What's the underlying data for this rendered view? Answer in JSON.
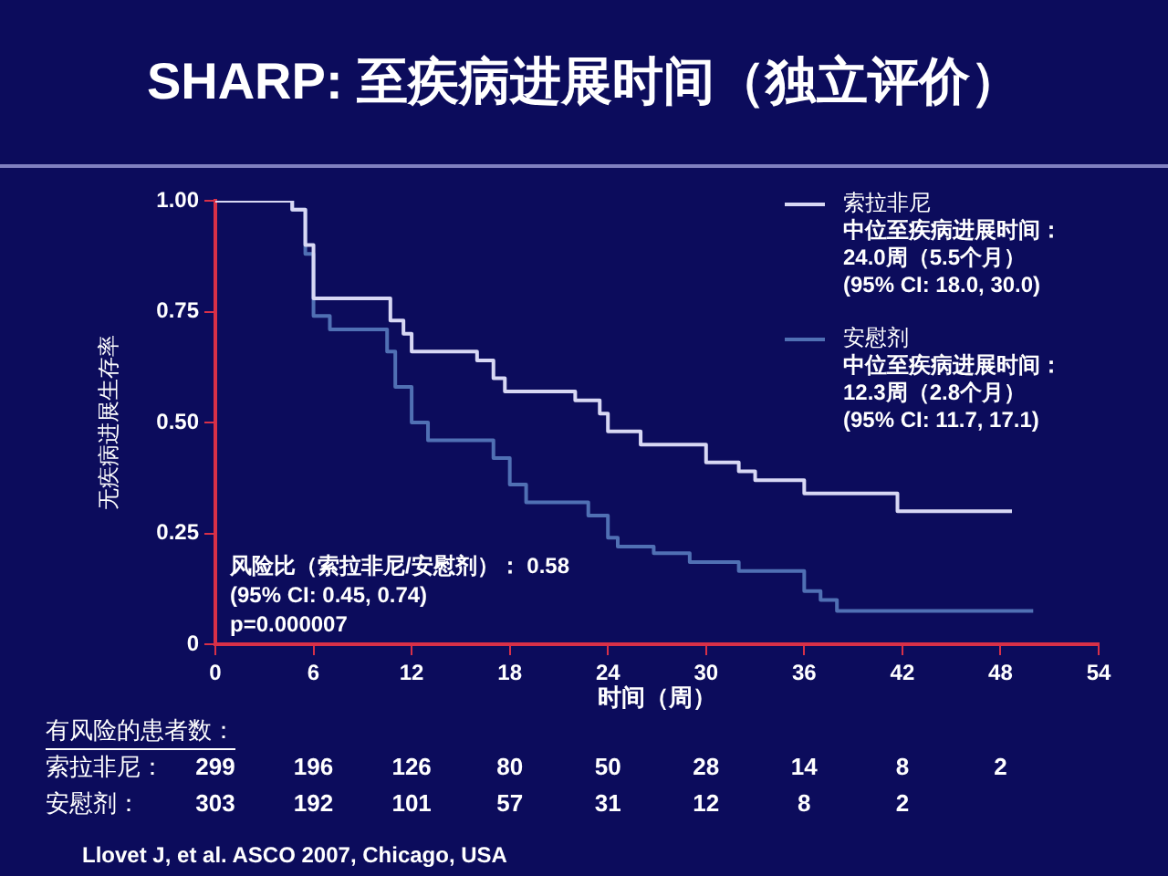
{
  "chart_data": {
    "type": "step",
    "title": "SHARP: 至疾病进展时间（独立评价）",
    "xlabel": "时间（周）",
    "ylabel": "无疾病进展生存率",
    "xlim": [
      0,
      54
    ],
    "xticks": [
      0,
      6,
      12,
      18,
      24,
      30,
      36,
      42,
      48,
      54
    ],
    "ylim": [
      0,
      1
    ],
    "yticks": [
      {
        "value": 0,
        "label": "0"
      },
      {
        "value": 0.25,
        "label": "0.25"
      },
      {
        "value": 0.5,
        "label": "0.50"
      },
      {
        "value": 0.75,
        "label": "0.75"
      },
      {
        "value": 1,
        "label": "1.00"
      }
    ],
    "legend": "top right",
    "grid": false,
    "marker": "none",
    "series": [
      {
        "name": "索拉非尼",
        "color": "#d8d8f4",
        "x": [
          0,
          4.7,
          5.5,
          6,
          10.7,
          11.5,
          12,
          16,
          17,
          17.7,
          22,
          23.5,
          24,
          26,
          30,
          32,
          33,
          36,
          41.7,
          48.7
        ],
        "values": [
          1,
          0.98,
          0.9,
          0.78,
          0.73,
          0.7,
          0.66,
          0.64,
          0.6,
          0.57,
          0.55,
          0.52,
          0.48,
          0.45,
          0.41,
          0.39,
          0.37,
          0.34,
          0.3,
          0.3
        ]
      },
      {
        "name": "安慰剂",
        "color": "#5070b4",
        "x": [
          0,
          4.7,
          5.5,
          6,
          7,
          10.5,
          11,
          12,
          13,
          17,
          18,
          19,
          22.8,
          24,
          24.6,
          26.8,
          29,
          32,
          36,
          37,
          38,
          50
        ],
        "values": [
          1,
          0.98,
          0.88,
          0.74,
          0.71,
          0.66,
          0.58,
          0.5,
          0.46,
          0.42,
          0.36,
          0.32,
          0.29,
          0.24,
          0.22,
          0.205,
          0.185,
          0.165,
          0.12,
          0.1,
          0.075,
          0.075
        ]
      }
    ],
    "annotations": [
      "中位至疾病进展时间：\n24.0周（5.5个月）\n(95% CI: 18.0, 30.0)",
      "中位至疾病进展时间：\n12.3周（2.8个月）\n(95% CI: 11.7, 17.1)",
      "风险比（索拉非尼/安慰剂）： 0.58\n(95% CI: 0.45, 0.74)\np=0.000007",
      "有风险的患者数：",
      "索拉非尼： 299 196 126 80 50 28 14 8 2",
      "安慰剂： 303 192 101 57 31 12 8 2",
      "Llovet J, et al. ASCO 2007, Chicago, USA"
    ]
  }
}
